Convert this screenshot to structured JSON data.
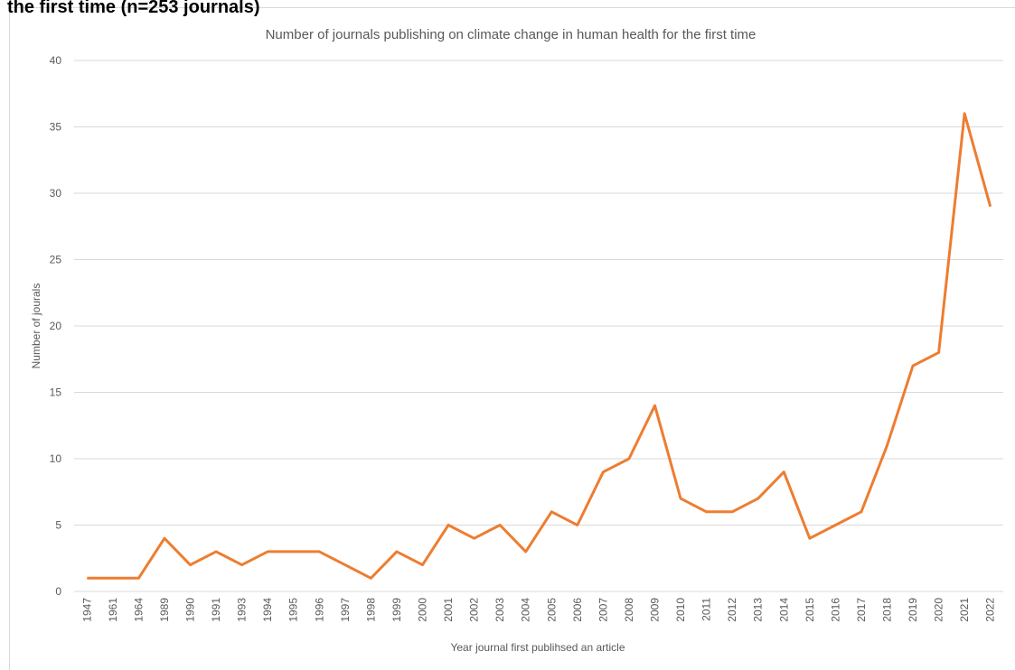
{
  "heading": "the first time (n=253 journals)",
  "chart_data": {
    "type": "line",
    "title": "Number of journals publishing on climate change in human health for the first time",
    "x_label": "Year journal first publihsed an article",
    "y_label": "Number of jourals",
    "categories": [
      "1947",
      "1961",
      "1964",
      "1989",
      "1990",
      "1991",
      "1993",
      "1994",
      "1995",
      "1996",
      "1997",
      "1998",
      "1999",
      "2000",
      "2001",
      "2002",
      "2003",
      "2004",
      "2005",
      "2006",
      "2007",
      "2008",
      "2009",
      "2010",
      "2011",
      "2012",
      "2013",
      "2014",
      "2015",
      "2016",
      "2017",
      "2018",
      "2019",
      "2020",
      "2021",
      "2022"
    ],
    "series": [
      {
        "name": "Number of journals",
        "color": "#ed7d31",
        "values": [
          1,
          1,
          1,
          4,
          2,
          3,
          2,
          3,
          3,
          3,
          2,
          1,
          3,
          2,
          5,
          4,
          5,
          3,
          6,
          5,
          9,
          10,
          14,
          7,
          6,
          6,
          7,
          9,
          4,
          5,
          6,
          11,
          17,
          18,
          36,
          29
        ]
      }
    ],
    "ylim": [
      0,
      40
    ],
    "yticks": [
      0,
      5,
      10,
      15,
      20,
      25,
      30,
      35,
      40
    ],
    "grid": true
  }
}
